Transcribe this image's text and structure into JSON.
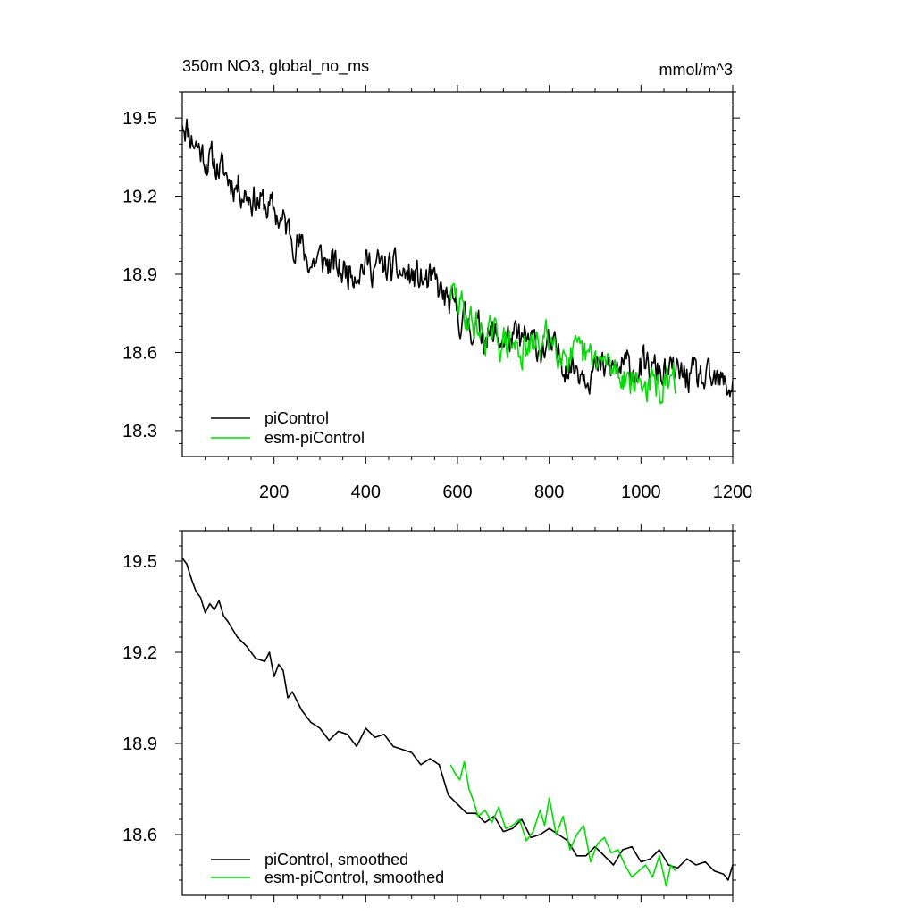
{
  "chart_data": [
    {
      "type": "line",
      "title": "350m NO3, global_no_ms",
      "units": "mmol/m^3",
      "xlim": [
        0,
        1200
      ],
      "ylim": [
        18.2,
        19.6
      ],
      "xticks": [
        200,
        400,
        600,
        800,
        1000,
        1200
      ],
      "xtick_labels": [
        "200",
        "400",
        "600",
        "800",
        "1000",
        "1200"
      ],
      "yticks": [
        18.3,
        18.6,
        18.9,
        19.2,
        19.5
      ],
      "ytick_labels": [
        "18.3",
        "18.6",
        "18.9",
        "19.2",
        "19.5"
      ],
      "legend_position": "bottom-left",
      "series": [
        {
          "name": "piControl",
          "color": "#000000",
          "style": "noisy",
          "x": [
            0,
            20,
            50,
            80,
            100,
            150,
            200,
            250,
            280,
            300,
            350,
            400,
            450,
            500,
            550,
            580,
            600,
            650,
            700,
            750,
            800,
            850,
            900,
            950,
            1000,
            1050,
            1100,
            1150,
            1200
          ],
          "values": [
            19.5,
            19.43,
            19.35,
            19.31,
            19.27,
            19.2,
            19.14,
            19.03,
            18.94,
            18.96,
            18.91,
            18.94,
            18.92,
            18.89,
            18.86,
            18.79,
            18.74,
            18.68,
            18.65,
            18.64,
            18.61,
            18.55,
            18.53,
            18.54,
            18.54,
            18.52,
            18.51,
            18.48,
            18.47
          ]
        },
        {
          "name": "esm-piControl",
          "color": "#00dd00",
          "style": "noisy",
          "x": [
            585,
            600,
            620,
            650,
            700,
            750,
            800,
            850,
            900,
            950,
            1000,
            1050,
            1075
          ],
          "values": [
            18.83,
            18.8,
            18.74,
            18.68,
            18.64,
            18.6,
            18.66,
            18.58,
            18.57,
            18.53,
            18.48,
            18.46,
            18.49
          ]
        }
      ]
    },
    {
      "type": "line",
      "title": "",
      "xlim": [
        0,
        1200
      ],
      "ylim": [
        18.4,
        19.6
      ],
      "xticks": [
        200,
        400,
        600,
        800,
        1000,
        1200
      ],
      "yticks": [
        18.6,
        18.9,
        19.2,
        19.5
      ],
      "ytick_labels": [
        "18.6",
        "18.9",
        "19.2",
        "19.5"
      ],
      "legend_position": "bottom-left",
      "series": [
        {
          "name": "piControl, smoothed",
          "color": "#000000",
          "style": "smooth",
          "x": [
            0,
            10,
            20,
            30,
            40,
            50,
            60,
            70,
            80,
            90,
            100,
            120,
            140,
            160,
            180,
            190,
            200,
            210,
            220,
            230,
            240,
            260,
            280,
            300,
            320,
            340,
            360,
            380,
            400,
            420,
            440,
            460,
            480,
            500,
            520,
            540,
            560,
            580,
            600,
            620,
            640,
            660,
            680,
            700,
            720,
            740,
            760,
            780,
            800,
            820,
            840,
            860,
            880,
            900,
            920,
            940,
            960,
            980,
            1000,
            1020,
            1040,
            1060,
            1080,
            1100,
            1120,
            1140,
            1160,
            1180,
            1190,
            1200
          ],
          "values": [
            19.51,
            19.49,
            19.44,
            19.4,
            19.38,
            19.33,
            19.36,
            19.34,
            19.37,
            19.32,
            19.3,
            19.25,
            19.22,
            19.18,
            19.17,
            19.2,
            19.12,
            19.16,
            19.14,
            19.05,
            19.07,
            19.01,
            18.97,
            18.95,
            18.91,
            18.94,
            18.93,
            18.89,
            18.95,
            18.92,
            18.93,
            18.89,
            18.88,
            18.87,
            18.83,
            18.85,
            18.83,
            18.73,
            18.7,
            18.67,
            18.67,
            18.64,
            18.66,
            18.61,
            18.62,
            18.65,
            18.59,
            18.6,
            18.62,
            18.6,
            18.58,
            18.53,
            18.53,
            18.56,
            18.53,
            18.5,
            18.55,
            18.56,
            18.51,
            18.52,
            18.55,
            18.5,
            18.49,
            18.52,
            18.5,
            18.51,
            18.48,
            18.47,
            18.45,
            18.5
          ]
        },
        {
          "name": "esm-piControl, smoothed",
          "color": "#00dd00",
          "style": "smooth",
          "x": [
            585,
            595,
            605,
            615,
            625,
            635,
            645,
            660,
            675,
            690,
            705,
            720,
            735,
            750,
            765,
            780,
            790,
            800,
            815,
            830,
            845,
            860,
            875,
            890,
            905,
            920,
            935,
            950,
            965,
            980,
            995,
            1010,
            1025,
            1040,
            1055,
            1065,
            1075
          ],
          "values": [
            18.83,
            18.8,
            18.78,
            18.84,
            18.75,
            18.71,
            18.66,
            18.68,
            18.64,
            18.69,
            18.62,
            18.63,
            18.65,
            18.58,
            18.61,
            18.68,
            18.63,
            18.72,
            18.6,
            18.66,
            18.55,
            18.6,
            18.63,
            18.51,
            18.57,
            18.59,
            18.54,
            18.55,
            18.5,
            18.46,
            18.48,
            18.5,
            18.46,
            18.53,
            18.43,
            18.5,
            18.48
          ]
        }
      ]
    }
  ]
}
